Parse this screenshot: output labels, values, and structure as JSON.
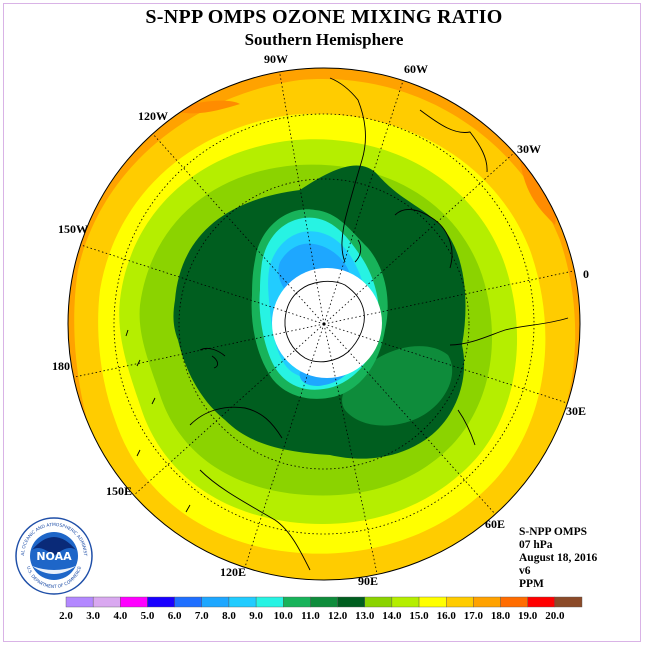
{
  "title": "S-NPP OMPS OZONE MIXING RATIO",
  "subtitle": "Southern Hemisphere",
  "longitude_labels": [
    "90W",
    "60W",
    "30W",
    "0",
    "30E",
    "60E",
    "90E",
    "120E",
    "150E",
    "180",
    "150W",
    "120W"
  ],
  "info": {
    "instrument": "S-NPP OMPS",
    "pressure_level": "07 hPa",
    "date": "August 18, 2016",
    "version": "v6",
    "units": "PPM"
  },
  "logo": {
    "text": "NOAA",
    "ring_text": "NATIONAL OCEANIC AND ATMOSPHERIC ADMINISTRATION",
    "ring_text_bottom": "U.S. DEPARTMENT OF COMMERCE",
    "icon": "noaa-seal-icon"
  },
  "colorbar": {
    "ticks": [
      "2.0",
      "3.0",
      "4.0",
      "5.0",
      "6.0",
      "7.0",
      "8.0",
      "9.0",
      "10.0",
      "11.0",
      "12.0",
      "13.0",
      "14.0",
      "15.0",
      "16.0",
      "17.0",
      "18.0",
      "19.0",
      "20.0"
    ],
    "colors": [
      "#b388ff",
      "#d9a8f0",
      "#ff00ff",
      "#1a00ff",
      "#1f6fff",
      "#1ea7ff",
      "#22ccff",
      "#27f3e3",
      "#18b35a",
      "#0e8c3b",
      "#005e1f",
      "#8bd300",
      "#b5ee00",
      "#ffff00",
      "#ffcc00",
      "#ffa200",
      "#ff6c00",
      "#ff0000",
      "#8b4a28"
    ]
  },
  "map_colors": {
    "orange": "#ffa200",
    "gold": "#ffcc00",
    "yellow": "#ffff00",
    "lime": "#b5ee00",
    "green_yellow": "#8bd300",
    "dark_green": "#005e1f",
    "mid_green": "#0e8c3b",
    "green": "#18b35a",
    "cyan": "#27f3e3",
    "sky": "#22ccff",
    "blue": "#1ea7ff",
    "deep_orange": "#ff8c00"
  }
}
